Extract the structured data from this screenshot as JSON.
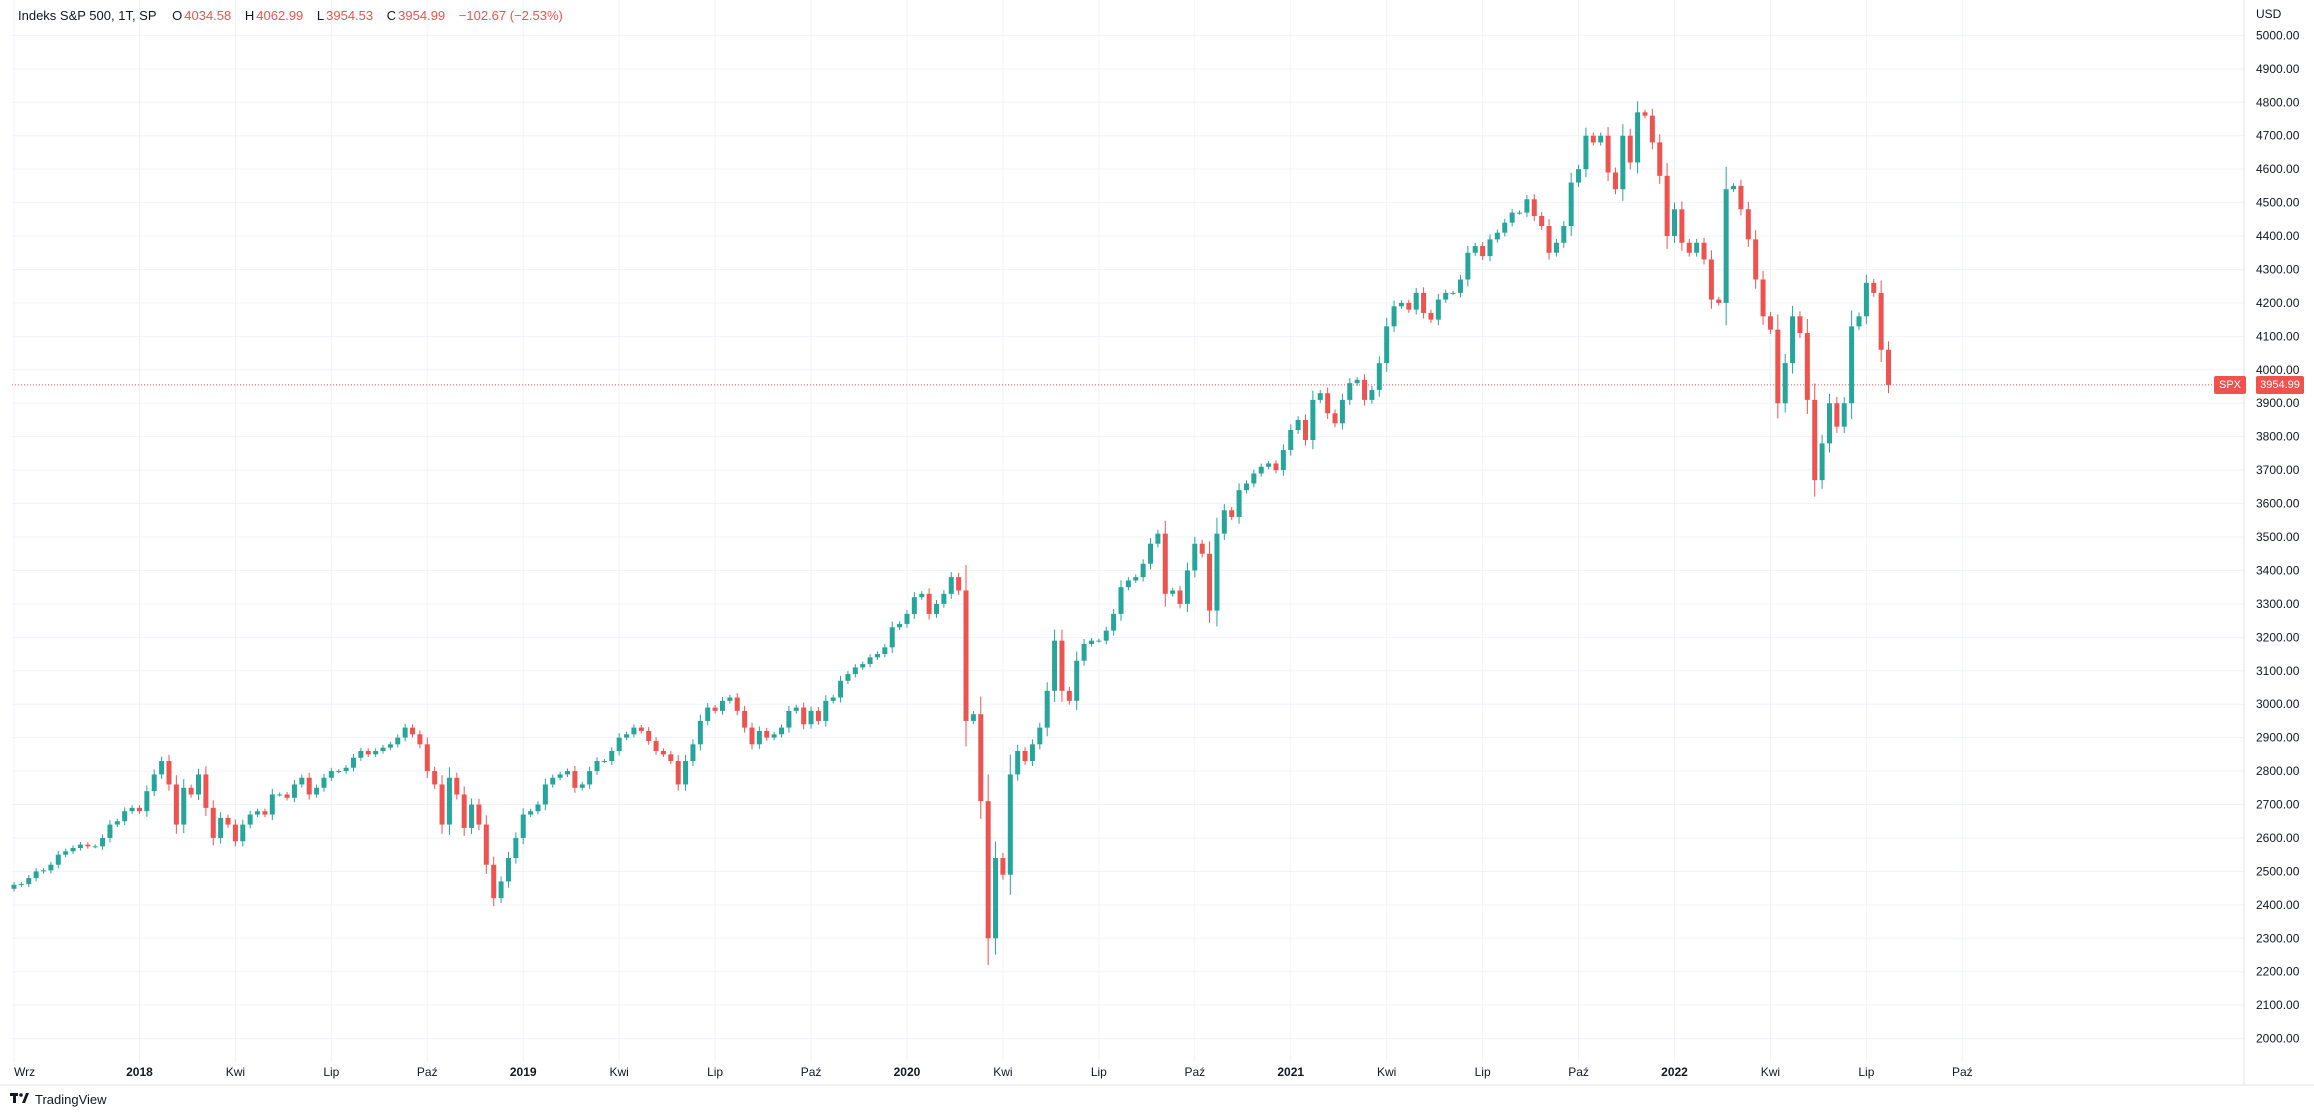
{
  "legend": {
    "symbol": "Indeks S&P 500, 1T, SP",
    "open_label": "O",
    "open_value": "4034.58",
    "high_label": "H",
    "high_value": "4062.99",
    "low_label": "L",
    "low_value": "3954.53",
    "close_label": "C",
    "close_value": "3954.99",
    "change": "−102.67 (−2.53%)"
  },
  "currency": "USD",
  "last_price_label": "3954.99",
  "symbol_tag": "SPX",
  "branding": "TradingView",
  "colors": {
    "up": "#26a69a",
    "down": "#ef5350",
    "grid": "#f0f3fa",
    "axis_text": "#131722"
  },
  "chart_data": {
    "type": "candlestick",
    "title": "Indeks S&P 500, 1T, SP",
    "ylim": [
      1930,
      5070
    ],
    "y_scale": "linear",
    "y_ticks": [
      2000,
      2100,
      2200,
      2300,
      2400,
      2500,
      2600,
      2700,
      2800,
      2900,
      3000,
      3100,
      3200,
      3300,
      3400,
      3500,
      3600,
      3700,
      3800,
      3900,
      4000,
      4100,
      4200,
      4300,
      4400,
      4500,
      4600,
      4700,
      4800,
      4900,
      5000
    ],
    "y_tick_labels": [
      "2000.00",
      "2100.00",
      "2200.00",
      "2300.00",
      "2400.00",
      "2500.00",
      "2600.00",
      "2700.00",
      "2800.00",
      "2900.00",
      "3000.00",
      "3100.00",
      "3200.00",
      "3300.00",
      "3400.00",
      "3500.00",
      "3600.00",
      "3700.00",
      "3800.00",
      "3900.00",
      "4000.00",
      "4100.00",
      "4200.00",
      "4300.00",
      "4400.00",
      "4500.00",
      "4600.00",
      "4700.00",
      "4800.00",
      "4900.00",
      "5000.00"
    ],
    "x_ticks": [
      {
        "week": 0,
        "label": "Wrz",
        "bold": false
      },
      {
        "week": 17,
        "label": "2018",
        "bold": true
      },
      {
        "week": 30,
        "label": "Kwi",
        "bold": false
      },
      {
        "week": 43,
        "label": "Lip",
        "bold": false
      },
      {
        "week": 56,
        "label": "Paź",
        "bold": false
      },
      {
        "week": 69,
        "label": "2019",
        "bold": true
      },
      {
        "week": 82,
        "label": "Kwi",
        "bold": false
      },
      {
        "week": 95,
        "label": "Lip",
        "bold": false
      },
      {
        "week": 108,
        "label": "Paź",
        "bold": false
      },
      {
        "week": 121,
        "label": "2020",
        "bold": true
      },
      {
        "week": 134,
        "label": "Kwi",
        "bold": false
      },
      {
        "week": 147,
        "label": "Lip",
        "bold": false
      },
      {
        "week": 160,
        "label": "Paź",
        "bold": false
      },
      {
        "week": 173,
        "label": "2021",
        "bold": true
      },
      {
        "week": 186,
        "label": "Kwi",
        "bold": false
      },
      {
        "week": 199,
        "label": "Lip",
        "bold": false
      },
      {
        "week": 212,
        "label": "Paź",
        "bold": false
      },
      {
        "week": 225,
        "label": "2022",
        "bold": true
      },
      {
        "week": 238,
        "label": "Kwi",
        "bold": false
      },
      {
        "week": 251,
        "label": "Lip",
        "bold": false
      },
      {
        "week": 264,
        "label": "Paź",
        "bold": false
      }
    ],
    "last_price": 3954.99,
    "closes": [
      2460,
      2462,
      2480,
      2500,
      2503,
      2520,
      2550,
      2560,
      2570,
      2580,
      2575,
      2575,
      2600,
      2640,
      2650,
      2680,
      2690,
      2680,
      2740,
      2790,
      2830,
      2760,
      2640,
      2750,
      2730,
      2790,
      2690,
      2600,
      2660,
      2640,
      2590,
      2640,
      2670,
      2680,
      2670,
      2730,
      2730,
      2720,
      2760,
      2780,
      2730,
      2750,
      2780,
      2800,
      2800,
      2810,
      2840,
      2860,
      2850,
      2860,
      2870,
      2880,
      2900,
      2930,
      2910,
      2880,
      2800,
      2760,
      2640,
      2780,
      2730,
      2630,
      2700,
      2640,
      2520,
      2420,
      2470,
      2540,
      2600,
      2670,
      2680,
      2700,
      2760,
      2780,
      2790,
      2800,
      2750,
      2760,
      2800,
      2830,
      2830,
      2860,
      2900,
      2910,
      2930,
      2920,
      2890,
      2860,
      2850,
      2830,
      2760,
      2830,
      2880,
      2950,
      2990,
      2980,
      3010,
      3020,
      2980,
      2930,
      2880,
      2920,
      2900,
      2910,
      2930,
      2980,
      2990,
      2940,
      2980,
      2950,
      3010,
      3020,
      3070,
      3090,
      3110,
      3120,
      3140,
      3150,
      3170,
      3230,
      3240,
      3270,
      3320,
      3330,
      3270,
      3300,
      3330,
      3380,
      3340,
      2950,
      2970,
      2710,
      2300,
      2540,
      2490,
      2790,
      2860,
      2830,
      2880,
      2930,
      3040,
      3190,
      3040,
      3010,
      3130,
      3180,
      3190,
      3190,
      3220,
      3270,
      3350,
      3370,
      3380,
      3420,
      3480,
      3510,
      3330,
      3340,
      3300,
      3400,
      3480,
      3450,
      3280,
      3510,
      3580,
      3560,
      3640,
      3660,
      3690,
      3710,
      3720,
      3700,
      3760,
      3820,
      3850,
      3790,
      3910,
      3930,
      3870,
      3840,
      3910,
      3960,
      3970,
      3910,
      3940,
      4020,
      4130,
      4190,
      4200,
      4180,
      4230,
      4170,
      4150,
      4210,
      4230,
      4230,
      4270,
      4350,
      4370,
      4340,
      4390,
      4410,
      4440,
      4470,
      4470,
      4510,
      4460,
      4430,
      4350,
      4380,
      4430,
      4560,
      4600,
      4700,
      4680,
      4700,
      4590,
      4540,
      4700,
      4620,
      4770,
      4760,
      4680,
      4580,
      4400,
      4480,
      4380,
      4350,
      4380,
      4330,
      4210,
      4200,
      4540,
      4550,
      4480,
      4390,
      4270,
      4160,
      4120,
      3900,
      4020,
      4160,
      4110,
      3910,
      3670,
      3780,
      3900,
      3830,
      3900,
      4130,
      4160,
      4260,
      4230,
      4060,
      3955
    ]
  }
}
